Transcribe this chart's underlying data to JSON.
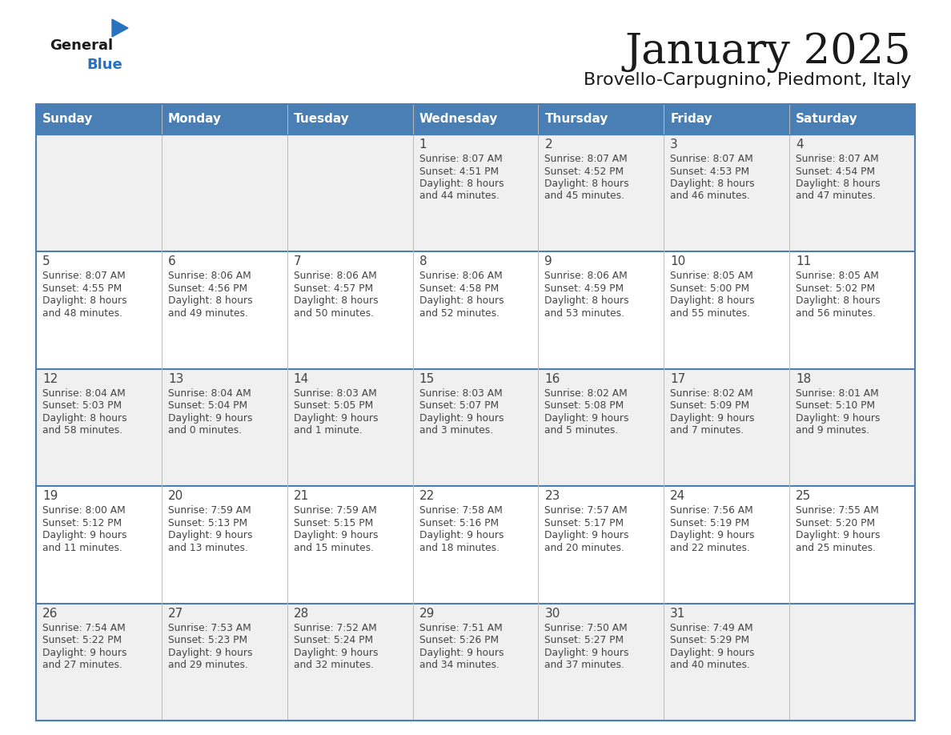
{
  "title": "January 2025",
  "subtitle": "Brovello-Carpugnino, Piedmont, Italy",
  "days_of_week": [
    "Sunday",
    "Monday",
    "Tuesday",
    "Wednesday",
    "Thursday",
    "Friday",
    "Saturday"
  ],
  "header_bg": "#4a7fb5",
  "header_text": "#ffffff",
  "row_bg_odd": "#f0f0f0",
  "row_bg_even": "#ffffff",
  "separator_color": "#4a7fb5",
  "text_color": "#444444",
  "title_color": "#1a1a1a",
  "calendar_data": [
    [
      {
        "day": "",
        "sunrise": "",
        "sunset": "",
        "daylight": ""
      },
      {
        "day": "",
        "sunrise": "",
        "sunset": "",
        "daylight": ""
      },
      {
        "day": "",
        "sunrise": "",
        "sunset": "",
        "daylight": ""
      },
      {
        "day": "1",
        "sunrise": "8:07 AM",
        "sunset": "4:51 PM",
        "daylight": "8 hours\nand 44 minutes."
      },
      {
        "day": "2",
        "sunrise": "8:07 AM",
        "sunset": "4:52 PM",
        "daylight": "8 hours\nand 45 minutes."
      },
      {
        "day": "3",
        "sunrise": "8:07 AM",
        "sunset": "4:53 PM",
        "daylight": "8 hours\nand 46 minutes."
      },
      {
        "day": "4",
        "sunrise": "8:07 AM",
        "sunset": "4:54 PM",
        "daylight": "8 hours\nand 47 minutes."
      }
    ],
    [
      {
        "day": "5",
        "sunrise": "8:07 AM",
        "sunset": "4:55 PM",
        "daylight": "8 hours\nand 48 minutes."
      },
      {
        "day": "6",
        "sunrise": "8:06 AM",
        "sunset": "4:56 PM",
        "daylight": "8 hours\nand 49 minutes."
      },
      {
        "day": "7",
        "sunrise": "8:06 AM",
        "sunset": "4:57 PM",
        "daylight": "8 hours\nand 50 minutes."
      },
      {
        "day": "8",
        "sunrise": "8:06 AM",
        "sunset": "4:58 PM",
        "daylight": "8 hours\nand 52 minutes."
      },
      {
        "day": "9",
        "sunrise": "8:06 AM",
        "sunset": "4:59 PM",
        "daylight": "8 hours\nand 53 minutes."
      },
      {
        "day": "10",
        "sunrise": "8:05 AM",
        "sunset": "5:00 PM",
        "daylight": "8 hours\nand 55 minutes."
      },
      {
        "day": "11",
        "sunrise": "8:05 AM",
        "sunset": "5:02 PM",
        "daylight": "8 hours\nand 56 minutes."
      }
    ],
    [
      {
        "day": "12",
        "sunrise": "8:04 AM",
        "sunset": "5:03 PM",
        "daylight": "8 hours\nand 58 minutes."
      },
      {
        "day": "13",
        "sunrise": "8:04 AM",
        "sunset": "5:04 PM",
        "daylight": "9 hours\nand 0 minutes."
      },
      {
        "day": "14",
        "sunrise": "8:03 AM",
        "sunset": "5:05 PM",
        "daylight": "9 hours\nand 1 minute."
      },
      {
        "day": "15",
        "sunrise": "8:03 AM",
        "sunset": "5:07 PM",
        "daylight": "9 hours\nand 3 minutes."
      },
      {
        "day": "16",
        "sunrise": "8:02 AM",
        "sunset": "5:08 PM",
        "daylight": "9 hours\nand 5 minutes."
      },
      {
        "day": "17",
        "sunrise": "8:02 AM",
        "sunset": "5:09 PM",
        "daylight": "9 hours\nand 7 minutes."
      },
      {
        "day": "18",
        "sunrise": "8:01 AM",
        "sunset": "5:10 PM",
        "daylight": "9 hours\nand 9 minutes."
      }
    ],
    [
      {
        "day": "19",
        "sunrise": "8:00 AM",
        "sunset": "5:12 PM",
        "daylight": "9 hours\nand 11 minutes."
      },
      {
        "day": "20",
        "sunrise": "7:59 AM",
        "sunset": "5:13 PM",
        "daylight": "9 hours\nand 13 minutes."
      },
      {
        "day": "21",
        "sunrise": "7:59 AM",
        "sunset": "5:15 PM",
        "daylight": "9 hours\nand 15 minutes."
      },
      {
        "day": "22",
        "sunrise": "7:58 AM",
        "sunset": "5:16 PM",
        "daylight": "9 hours\nand 18 minutes."
      },
      {
        "day": "23",
        "sunrise": "7:57 AM",
        "sunset": "5:17 PM",
        "daylight": "9 hours\nand 20 minutes."
      },
      {
        "day": "24",
        "sunrise": "7:56 AM",
        "sunset": "5:19 PM",
        "daylight": "9 hours\nand 22 minutes."
      },
      {
        "day": "25",
        "sunrise": "7:55 AM",
        "sunset": "5:20 PM",
        "daylight": "9 hours\nand 25 minutes."
      }
    ],
    [
      {
        "day": "26",
        "sunrise": "7:54 AM",
        "sunset": "5:22 PM",
        "daylight": "9 hours\nand 27 minutes."
      },
      {
        "day": "27",
        "sunrise": "7:53 AM",
        "sunset": "5:23 PM",
        "daylight": "9 hours\nand 29 minutes."
      },
      {
        "day": "28",
        "sunrise": "7:52 AM",
        "sunset": "5:24 PM",
        "daylight": "9 hours\nand 32 minutes."
      },
      {
        "day": "29",
        "sunrise": "7:51 AM",
        "sunset": "5:26 PM",
        "daylight": "9 hours\nand 34 minutes."
      },
      {
        "day": "30",
        "sunrise": "7:50 AM",
        "sunset": "5:27 PM",
        "daylight": "9 hours\nand 37 minutes."
      },
      {
        "day": "31",
        "sunrise": "7:49 AM",
        "sunset": "5:29 PM",
        "daylight": "9 hours\nand 40 minutes."
      },
      {
        "day": "",
        "sunrise": "",
        "sunset": "",
        "daylight": ""
      }
    ]
  ]
}
